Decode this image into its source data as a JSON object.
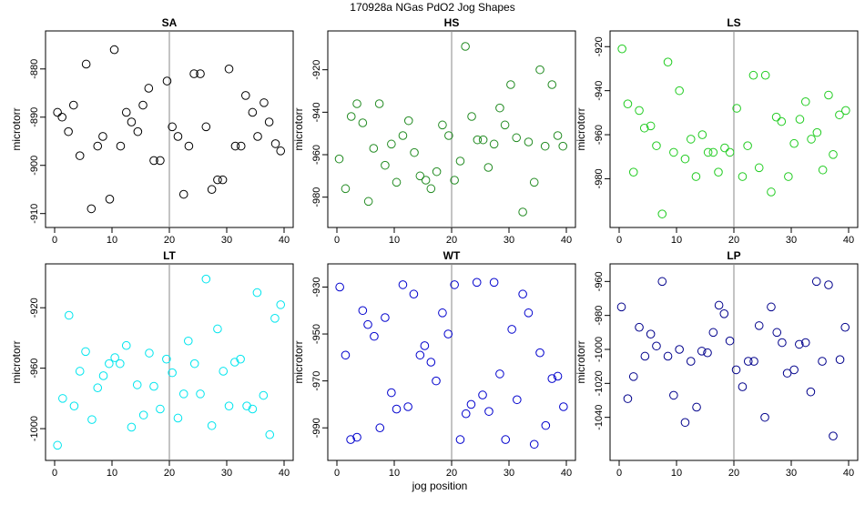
{
  "figure": {
    "title": "170928a   NGas PdO2 Jog Shapes",
    "xlabel": "jog position",
    "ylabel": "microtorr"
  },
  "chart_data": [
    {
      "type": "scatter",
      "title": "SA",
      "color": "#000000",
      "ylabel": "microtorr",
      "xlim": [
        0,
        40
      ],
      "ylim": [
        -911,
        -874
      ],
      "yticks": [
        -910,
        -900,
        -890,
        -880
      ],
      "xticks": [
        0,
        10,
        20,
        30,
        40
      ],
      "vline": 20,
      "x": [
        0.5,
        1.3,
        2.4,
        3.3,
        4.4,
        5.5,
        6.4,
        7.5,
        8.4,
        9.6,
        10.4,
        11.5,
        12.5,
        13.4,
        14.5,
        15.4,
        16.4,
        17.3,
        18.4,
        19.6,
        20.5,
        21.5,
        22.5,
        23.4,
        24.3,
        25.4,
        26.4,
        27.4,
        28.4,
        29.3,
        30.4,
        31.5,
        32.5,
        33.3,
        34.5,
        35.4,
        36.5,
        37.4,
        38.5,
        39.4
      ],
      "y": [
        -889,
        -890,
        -893,
        -887.5,
        -898,
        -879,
        -909,
        -896,
        -894,
        -907,
        -876,
        -896,
        -889,
        -891,
        -893,
        -887.5,
        -884,
        -899,
        -899,
        -882.5,
        -892,
        -894,
        -906,
        -896,
        -881,
        -881,
        -892,
        -905,
        -903,
        -903,
        -880,
        -896,
        -896,
        -885.5,
        -889,
        -894,
        -887,
        -891,
        -895.5,
        -897
      ]
    },
    {
      "type": "scatter",
      "title": "HS",
      "color": "#228B22",
      "ylabel": "microtorr",
      "xlim": [
        0,
        40
      ],
      "ylim": [
        -990,
        -906
      ],
      "yticks": [
        -980,
        -960,
        -940,
        -920
      ],
      "xticks": [
        0,
        10,
        20,
        30,
        40
      ],
      "vline": 20,
      "x": [
        0.4,
        1.5,
        2.5,
        3.5,
        4.5,
        5.5,
        6.4,
        7.4,
        8.4,
        9.5,
        10.4,
        11.5,
        12.5,
        13.5,
        14.5,
        15.5,
        16.4,
        17.4,
        18.4,
        19.5,
        20.5,
        21.5,
        22.4,
        23.5,
        24.5,
        25.5,
        26.4,
        27.4,
        28.4,
        29.3,
        30.3,
        31.3,
        32.4,
        33.4,
        34.4,
        35.4,
        36.3,
        37.5,
        38.5,
        39.4
      ],
      "y": [
        -962,
        -976,
        -942,
        -936,
        -945,
        -982,
        -957,
        -936,
        -965,
        -955,
        -973,
        -951,
        -944,
        -959,
        -970,
        -972,
        -976,
        -968,
        -946,
        -951,
        -972,
        -963,
        -909,
        -942,
        -953,
        -953,
        -966,
        -955,
        -938,
        -946,
        -927,
        -952,
        -987,
        -954,
        -973,
        -920,
        -956,
        -927,
        -951,
        -956
      ]
    },
    {
      "type": "scatter",
      "title": "LS",
      "color": "#22CC22",
      "ylabel": "microtorr",
      "xlim": [
        0,
        40
      ],
      "ylim": [
        -998,
        -917
      ],
      "yticks": [
        -980,
        -960,
        -940,
        -920
      ],
      "xticks": [
        0,
        10,
        20,
        30,
        40
      ],
      "vline": 20,
      "x": [
        0.5,
        1.5,
        2.5,
        3.5,
        4.4,
        5.5,
        6.5,
        7.5,
        8.5,
        9.5,
        10.5,
        11.5,
        12.5,
        13.4,
        14.5,
        15.5,
        16.4,
        17.3,
        18.4,
        19.3,
        20.5,
        21.5,
        22.4,
        23.4,
        24.4,
        25.5,
        26.5,
        27.4,
        28.3,
        29.5,
        30.5,
        31.5,
        32.5,
        33.5,
        34.5,
        35.5,
        36.5,
        37.3,
        38.4,
        39.5
      ],
      "y": [
        -921,
        -946,
        -977,
        -949,
        -957,
        -956,
        -965,
        -996,
        -927,
        -968,
        -940,
        -971,
        -962,
        -979,
        -960,
        -968,
        -968,
        -977,
        -966,
        -968,
        -948,
        -979,
        -965,
        -933,
        -975,
        -933,
        -986,
        -952,
        -954,
        -979,
        -964,
        -953,
        -945,
        -962,
        -959,
        -976,
        -942,
        -969,
        -951,
        -949
      ]
    },
    {
      "type": "scatter",
      "title": "LT",
      "color": "#00E5EE",
      "ylabel": "microtorr",
      "xlim": [
        0,
        40
      ],
      "ylim": [
        -1015,
        -897
      ],
      "yticks": [
        -1000,
        -960,
        -920
      ],
      "xticks": [
        0,
        10,
        20,
        30,
        40
      ],
      "vline": 20,
      "x": [
        0.5,
        1.4,
        2.5,
        3.4,
        4.4,
        5.4,
        6.5,
        7.5,
        8.5,
        9.5,
        10.5,
        11.4,
        12.5,
        13.4,
        14.4,
        15.5,
        16.5,
        17.3,
        18.4,
        19.5,
        20.5,
        21.5,
        22.5,
        23.3,
        24.4,
        25.4,
        26.4,
        27.4,
        28.4,
        29.4,
        30.4,
        31.4,
        32.4,
        33.5,
        34.5,
        35.3,
        36.4,
        37.5,
        38.4,
        39.4
      ],
      "y": [
        -1011,
        -980,
        -925,
        -985,
        -962,
        -949,
        -994,
        -973,
        -965,
        -957,
        -953,
        -957,
        -945,
        -999,
        -971,
        -991,
        -950,
        -972,
        -987,
        -954,
        -963,
        -993,
        -977,
        -942,
        -957,
        -977,
        -901,
        -998,
        -934,
        -962,
        -985,
        -956,
        -954,
        -985,
        -987,
        -910,
        -978,
        -1004,
        -927,
        -918
      ]
    },
    {
      "type": "scatter",
      "title": "WT",
      "color": "#0000CD",
      "ylabel": "microtorr",
      "xlim": [
        0,
        40
      ],
      "ylim": [
        -1000,
        -924
      ],
      "yticks": [
        -990,
        -970,
        -950,
        -930
      ],
      "xticks": [
        0,
        10,
        20,
        30,
        40
      ],
      "vline": 20,
      "x": [
        0.5,
        1.5,
        2.4,
        3.5,
        4.5,
        5.4,
        6.5,
        7.5,
        8.4,
        9.5,
        10.4,
        11.5,
        12.4,
        13.4,
        14.5,
        15.3,
        16.4,
        17.3,
        18.4,
        19.4,
        20.5,
        21.5,
        22.5,
        23.4,
        24.4,
        25.4,
        26.5,
        27.4,
        28.4,
        29.4,
        30.5,
        31.4,
        32.4,
        33.4,
        34.4,
        35.4,
        36.4,
        37.5,
        38.5,
        39.5
      ],
      "y": [
        -930,
        -959,
        -995,
        -994,
        -940,
        -946,
        -951,
        -990,
        -943,
        -975,
        -982,
        -929,
        -981,
        -933,
        -959,
        -955,
        -962,
        -970,
        -941,
        -950,
        -929,
        -995,
        -984,
        -980,
        -928,
        -976,
        -983,
        -928,
        -967,
        -995,
        -948,
        -978,
        -933,
        -941,
        -997,
        -958,
        -989,
        -969,
        -968,
        -981
      ]
    },
    {
      "type": "scatter",
      "title": "LP",
      "color": "#00008B",
      "ylabel": "microtorr",
      "xlim": [
        0,
        40
      ],
      "ylim": [
        -1060,
        -955
      ],
      "yticks": [
        -1040,
        -1020,
        -1000,
        -980,
        -960
      ],
      "xticks": [
        0,
        10,
        20,
        30,
        40
      ],
      "vline": 20,
      "x": [
        0.4,
        1.5,
        2.5,
        3.5,
        4.5,
        5.5,
        6.5,
        7.5,
        8.5,
        9.5,
        10.5,
        11.5,
        12.5,
        13.5,
        14.4,
        15.4,
        16.4,
        17.4,
        18.3,
        19.3,
        20.4,
        21.5,
        22.5,
        23.5,
        24.4,
        25.4,
        26.5,
        27.5,
        28.4,
        29.3,
        30.5,
        31.4,
        32.5,
        33.4,
        34.4,
        35.4,
        36.5,
        37.3,
        38.5,
        39.4
      ],
      "y": [
        -975,
        -1029,
        -1016,
        -987,
        -1004,
        -991,
        -998,
        -960,
        -1004,
        -1027,
        -1000,
        -1043,
        -1007,
        -1034,
        -1001,
        -1002,
        -990,
        -974,
        -979,
        -995,
        -1012,
        -1022,
        -1007,
        -1007,
        -986,
        -1040,
        -975,
        -990,
        -996,
        -1014,
        -1012,
        -997,
        -996,
        -1025,
        -960,
        -1007,
        -962,
        -1051,
        -1006,
        -987
      ]
    }
  ]
}
